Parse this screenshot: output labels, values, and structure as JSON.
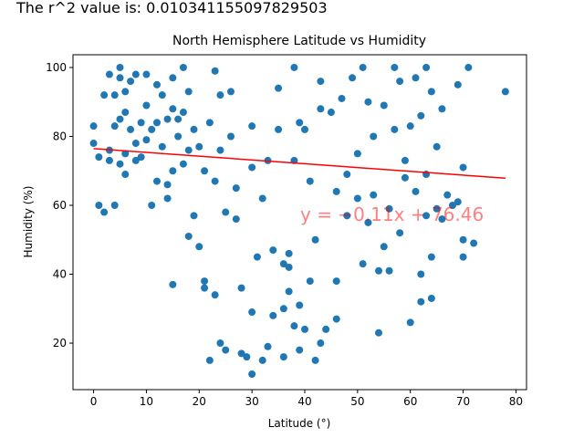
{
  "r2_text": "The r^2 value is: 0.010341155097829503",
  "chart_data": {
    "type": "scatter",
    "title": "North Hemisphere Latitude vs Humidity",
    "x_label": "Latitude (°)",
    "y_label": "Humidity (%)",
    "xlim": [
      -3.9,
      82
    ],
    "ylim": [
      6.5,
      103.7
    ],
    "xticks": [
      0,
      10,
      20,
      30,
      40,
      50,
      60,
      70,
      80
    ],
    "yticks": [
      20,
      40,
      60,
      80,
      100
    ],
    "series": [
      {
        "color": "#1f77b4",
        "x": [
          0,
          0,
          1,
          1,
          2,
          2,
          3,
          3,
          3,
          4,
          4,
          4,
          5,
          5,
          5,
          5,
          6,
          6,
          6,
          6,
          7,
          7,
          8,
          8,
          8,
          9,
          9,
          10,
          10,
          10,
          11,
          11,
          12,
          12,
          12,
          13,
          13,
          14,
          14,
          14,
          15,
          15,
          15,
          15,
          16,
          16,
          17,
          17,
          17,
          18,
          18,
          18,
          19,
          19,
          20,
          20,
          21,
          21,
          21,
          22,
          22,
          23,
          23,
          23,
          24,
          24,
          24,
          25,
          25,
          26,
          26,
          27,
          27,
          28,
          28,
          29,
          30,
          30,
          30,
          30,
          31,
          32,
          32,
          33,
          33,
          34,
          34,
          35,
          35,
          36,
          36,
          36,
          37,
          37,
          37,
          38,
          38,
          38,
          39,
          39,
          39,
          40,
          40,
          41,
          41,
          42,
          42,
          43,
          43,
          43,
          44,
          45,
          46,
          46,
          46,
          47,
          48,
          48,
          49,
          50,
          50,
          51,
          51,
          52,
          52,
          53,
          53,
          54,
          54,
          55,
          55,
          56,
          56,
          57,
          57,
          58,
          58,
          59,
          59,
          60,
          60,
          61,
          61,
          62,
          62,
          62,
          63,
          63,
          63,
          64,
          64,
          64,
          65,
          65,
          66,
          66,
          67,
          68,
          69,
          69,
          70,
          70,
          70,
          71,
          72,
          78
        ],
        "values": [
          83,
          78,
          60,
          74,
          92,
          58,
          98,
          76,
          73,
          92,
          60,
          83,
          100,
          85,
          72,
          97,
          93,
          87,
          75,
          69,
          96,
          82,
          98,
          78,
          73,
          84,
          74,
          98,
          89,
          79,
          60,
          82,
          95,
          67,
          84,
          92,
          77,
          85,
          66,
          62,
          97,
          88,
          37,
          70,
          80,
          85,
          100,
          72,
          87,
          93,
          51,
          76,
          57,
          82,
          48,
          77,
          36,
          38,
          70,
          15,
          84,
          99,
          67,
          34,
          20,
          92,
          76,
          18,
          58,
          80,
          93,
          65,
          56,
          36,
          17,
          16,
          11,
          29,
          71,
          83,
          45,
          62,
          15,
          19,
          73,
          47,
          28,
          94,
          82,
          43,
          30,
          16,
          46,
          35,
          42,
          100,
          73,
          25,
          84,
          31,
          18,
          24,
          82,
          38,
          67,
          50,
          15,
          20,
          96,
          88,
          24,
          87,
          64,
          27,
          38,
          91,
          69,
          57,
          97,
          62,
          75,
          43,
          100,
          55,
          90,
          63,
          80,
          41,
          23,
          89,
          48,
          59,
          41,
          100,
          82,
          96,
          52,
          68,
          73,
          83,
          26,
          64,
          97,
          32,
          40,
          86,
          100,
          57,
          69,
          45,
          33,
          93,
          59,
          77,
          88,
          56,
          63,
          60,
          95,
          61,
          71,
          45,
          50,
          100,
          49,
          93
        ]
      }
    ],
    "line": {
      "x": [
        0,
        78
      ],
      "values": [
        76.46,
        67.88
      ],
      "color": "#ff0000"
    },
    "annotation": "y = −0.11x + 76.46"
  }
}
